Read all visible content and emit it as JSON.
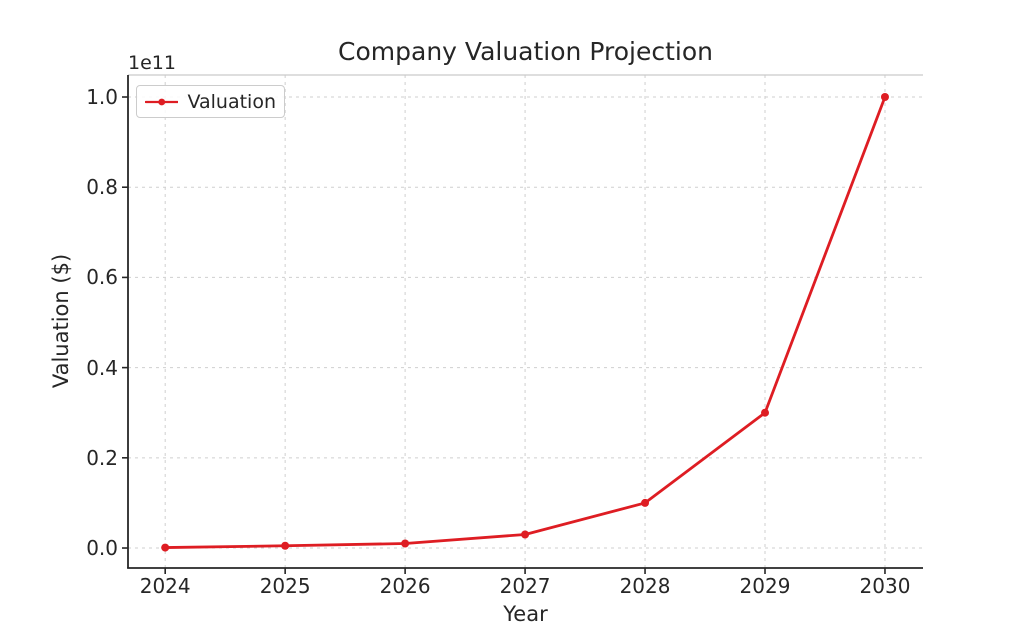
{
  "chart_data": {
    "type": "line",
    "title": "Company Valuation Projection",
    "xlabel": "Year",
    "ylabel": "Valuation ($)",
    "y_scale_offset_label": "1e11",
    "grid": true,
    "legend": {
      "position": "upper left",
      "entries": [
        {
          "label": "Valuation"
        }
      ]
    },
    "series": [
      {
        "name": "Valuation",
        "marker": "circle",
        "x": [
          2024,
          2025,
          2026,
          2027,
          2028,
          2029,
          2030
        ],
        "y": [
          100000000,
          500000000,
          1000000000,
          3000000000,
          10000000000,
          30000000000,
          100000000000
        ]
      }
    ],
    "x_ticks": [
      {
        "label": "2024",
        "value": 2024
      },
      {
        "label": "2025",
        "value": 2025
      },
      {
        "label": "2026",
        "value": 2026
      },
      {
        "label": "2027",
        "value": 2027
      },
      {
        "label": "2028",
        "value": 2028
      },
      {
        "label": "2029",
        "value": 2029
      },
      {
        "label": "2030",
        "value": 2030
      }
    ],
    "y_ticks": [
      {
        "label": "0.0",
        "value": 0
      },
      {
        "label": "0.2",
        "value": 20000000000
      },
      {
        "label": "0.4",
        "value": 40000000000
      },
      {
        "label": "0.6",
        "value": 60000000000
      },
      {
        "label": "0.8",
        "value": 80000000000
      },
      {
        "label": "1.0",
        "value": 100000000000
      }
    ],
    "xlim": [
      2023.69,
      2030.317
    ],
    "ylim": [
      -4430000000,
      104880000000
    ],
    "colors": {
      "line": "#de1d23",
      "grid": "#cfcfcf",
      "spine_dark": "#262626",
      "spine_light": "#c9c9c9",
      "text": "#262626",
      "background": "#ffffff"
    }
  }
}
